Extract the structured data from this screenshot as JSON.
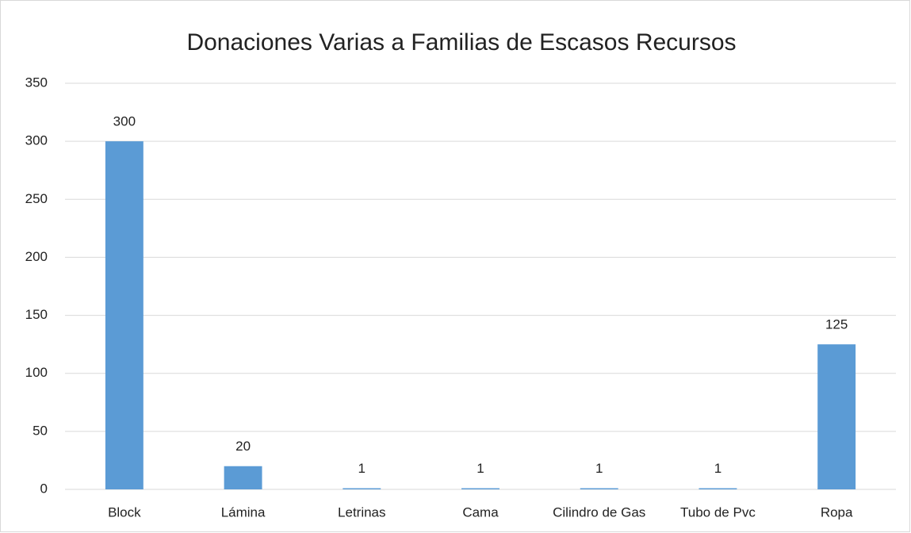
{
  "chart_data": {
    "type": "bar",
    "title": "Donaciones Varias a Familias de Escasos Recursos",
    "categories": [
      "Block",
      "Lámina",
      "Letrinas",
      "Cama",
      "Cilindro de Gas",
      "Tubo de Pvc",
      "Ropa"
    ],
    "values": [
      300,
      20,
      1,
      1,
      1,
      1,
      125
    ],
    "color": "#5b9bd5",
    "ylim": [
      0,
      350
    ],
    "yticks": [
      0,
      50,
      100,
      150,
      200,
      250,
      300,
      350
    ],
    "grid": true
  }
}
